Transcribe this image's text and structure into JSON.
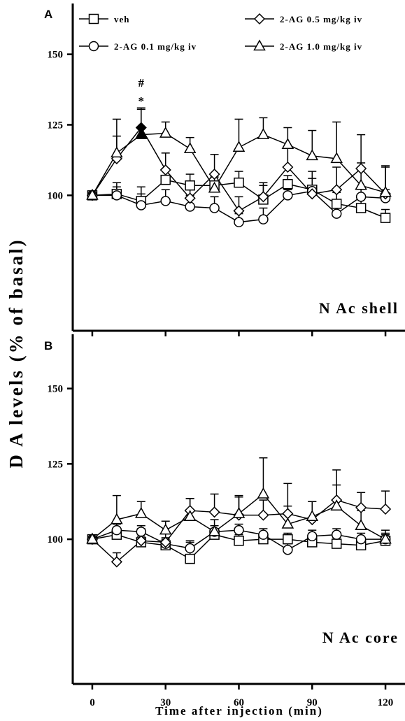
{
  "figure": {
    "ylabel": "D A levels (% of basal)",
    "xlabel": "Time after injection (min)"
  },
  "legend": [
    {
      "label": "veh",
      "marker": "square"
    },
    {
      "label": "2-AG 0.1 mg/kg iv",
      "marker": "circle"
    },
    {
      "label": "2-AG 0.5 mg/kg iv",
      "marker": "diamond"
    },
    {
      "label": "2-AG 1.0 mg/kg iv",
      "marker": "triangle"
    }
  ],
  "chart_data": [
    {
      "panel": "A",
      "type": "line",
      "region_label": "N Ac shell",
      "x": [
        0,
        10,
        20,
        30,
        40,
        50,
        60,
        70,
        80,
        90,
        100,
        110,
        120
      ],
      "xticks": [
        0,
        30,
        60,
        90,
        120
      ],
      "yticks": [
        100,
        125,
        150
      ],
      "xlim": [
        -8,
        128
      ],
      "ylim": [
        52,
        168
      ],
      "series": [
        {
          "name": "veh",
          "marker": "square",
          "values": [
            100,
            100.5,
            98,
            105.5,
            103.5,
            103.5,
            104.5,
            98.5,
            104,
            102,
            97,
            95.5,
            92
          ],
          "err": [
            0,
            4,
            5,
            4,
            4,
            0,
            4,
            5,
            3,
            4,
            4,
            4,
            3
          ]
        },
        {
          "name": "2-AG 0.1 mg/kg iv",
          "marker": "circle",
          "values": [
            100,
            100,
            96.5,
            98,
            96,
            95.5,
            90.5,
            91.5,
            100,
            101.5,
            93.5,
            99.5,
            99
          ],
          "err": [
            0,
            3,
            4,
            4,
            4,
            4,
            3,
            4,
            2,
            2,
            3,
            3,
            3
          ]
        },
        {
          "name": "2-AG 0.5 mg/kg iv",
          "marker": "diamond",
          "values": [
            100,
            113,
            124,
            109,
            99,
            107.5,
            94.5,
            99.5,
            110,
            100.5,
            102,
            109.5,
            100.5
          ],
          "err": [
            0,
            8,
            7,
            6,
            5,
            7,
            5,
            5,
            7,
            8,
            8,
            12,
            10
          ],
          "filled": [
            false,
            false,
            true,
            false,
            false,
            false,
            false,
            false,
            false,
            false,
            false,
            false,
            false
          ]
        },
        {
          "name": "2-AG 1.0 mg/kg iv",
          "marker": "triangle",
          "values": [
            100,
            115,
            121.5,
            122,
            116.5,
            102.5,
            117,
            121.5,
            118,
            114,
            113,
            103.5,
            101
          ],
          "err": [
            0,
            12,
            9,
            4,
            4,
            4,
            10,
            6,
            6,
            9,
            13,
            8,
            9
          ],
          "filled": [
            false,
            false,
            true,
            false,
            false,
            false,
            false,
            false,
            false,
            false,
            false,
            false,
            false
          ]
        }
      ],
      "annotations": [
        {
          "text": "#",
          "x": 20,
          "y": 138.5
        },
        {
          "text": "*",
          "x": 20,
          "y": 132
        }
      ]
    },
    {
      "panel": "B",
      "type": "line",
      "region_label": "N Ac core",
      "x": [
        0,
        10,
        20,
        30,
        40,
        50,
        60,
        70,
        80,
        90,
        100,
        110,
        120
      ],
      "xticks": [
        0,
        30,
        60,
        90,
        120
      ],
      "yticks": [
        100,
        125,
        150
      ],
      "xlim": [
        -8,
        128
      ],
      "ylim": [
        52,
        168
      ],
      "series": [
        {
          "name": "veh",
          "marker": "square",
          "values": [
            100,
            101.5,
            99,
            98,
            93.5,
            101.5,
            99.5,
            100,
            100,
            99,
            98.5,
            98,
            99.5
          ],
          "err": [
            0,
            2,
            2,
            2,
            6,
            2,
            2,
            2,
            2,
            2,
            2,
            2,
            2
          ]
        },
        {
          "name": "2-AG 0.1 mg/kg iv",
          "marker": "circle",
          "values": [
            100,
            103,
            102.5,
            98.5,
            97,
            102.5,
            103,
            101.5,
            96.5,
            101,
            101.5,
            100,
            100
          ],
          "err": [
            0,
            2,
            2,
            2,
            2,
            2,
            2,
            2,
            2,
            2,
            2,
            2,
            2
          ]
        },
        {
          "name": "2-AG 0.5 mg/kg iv",
          "marker": "diamond",
          "values": [
            100,
            92.5,
            99.5,
            99,
            109.5,
            109,
            108,
            108,
            108.5,
            106.5,
            113,
            110.5,
            110
          ],
          "err": [
            0,
            3,
            4,
            3,
            4,
            6,
            6,
            5,
            10,
            6,
            10,
            5,
            6
          ]
        },
        {
          "name": "2-AG 1.0 mg/kg iv",
          "marker": "triangle",
          "values": [
            100,
            106.5,
            108.5,
            103,
            107.5,
            102.5,
            108.5,
            115,
            105,
            107.5,
            111,
            104.5,
            100
          ],
          "err": [
            0,
            8,
            4,
            3,
            6,
            4,
            6,
            12,
            6,
            5,
            7,
            5,
            3
          ]
        }
      ]
    }
  ]
}
